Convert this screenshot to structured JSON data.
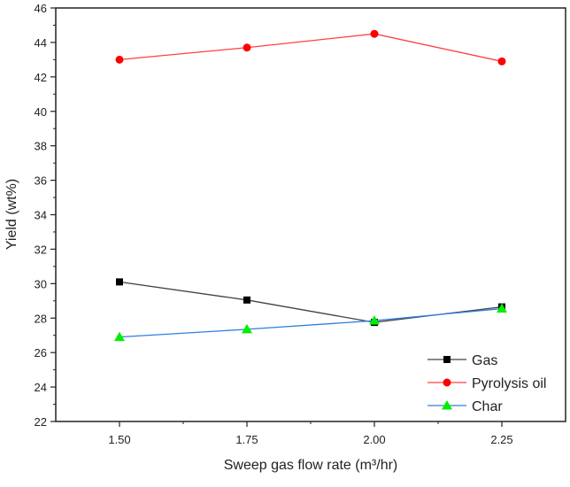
{
  "chart_data": {
    "type": "line",
    "title": "",
    "xlabel": "Sweep gas flow rate (m³/hr)",
    "ylabel": "Yield (wt%)",
    "x": [
      1.5,
      1.75,
      2.0,
      2.25
    ],
    "xticks": [
      "1.50",
      "1.75",
      "2.00",
      "2.25"
    ],
    "xlim": [
      1.375,
      2.375
    ],
    "ylim": [
      22,
      46
    ],
    "yticks": [
      "22",
      "24",
      "26",
      "28",
      "30",
      "32",
      "34",
      "36",
      "38",
      "40",
      "42",
      "44",
      "46"
    ],
    "grid": false,
    "legend_position": "bottom-right",
    "series": [
      {
        "name": "Gas",
        "values": [
          30.1,
          29.05,
          27.75,
          28.65
        ],
        "line_color": "#404040",
        "marker_color": "#000000",
        "marker": "square"
      },
      {
        "name": "Pyrolysis oil",
        "values": [
          43.0,
          43.7,
          44.5,
          42.9
        ],
        "line_color": "#ff4040",
        "marker_color": "#ff0000",
        "marker": "circle"
      },
      {
        "name": "Char",
        "values": [
          26.9,
          27.35,
          27.85,
          28.55
        ],
        "line_color": "#2f7fdf",
        "marker_color": "#00ee00",
        "marker": "triangle"
      }
    ]
  }
}
